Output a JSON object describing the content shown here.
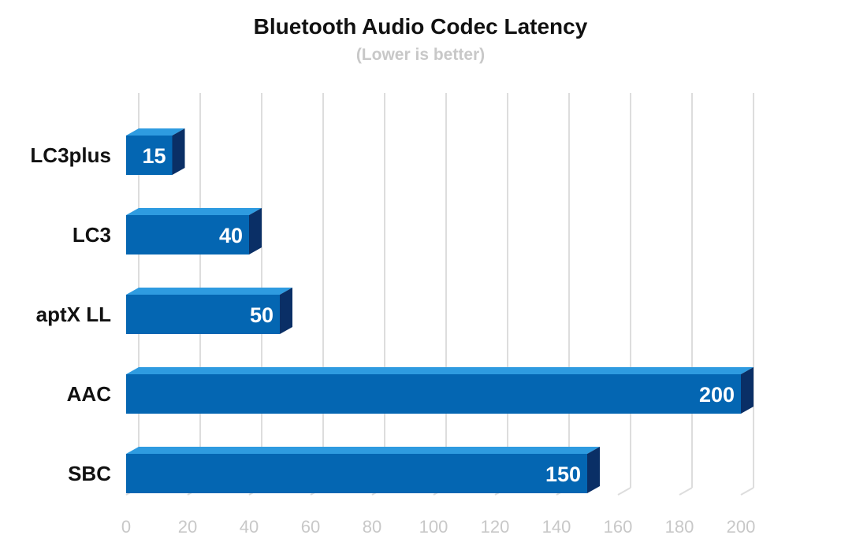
{
  "chart_data": {
    "type": "bar",
    "orientation": "horizontal",
    "title": "Bluetooth Audio Codec Latency",
    "subtitle": "(Lower is better)",
    "categories": [
      "LC3plus",
      "LC3",
      "aptX LL",
      "AAC",
      "SBC"
    ],
    "values": [
      15,
      40,
      50,
      200,
      150
    ],
    "xlim": [
      0,
      200
    ],
    "xticks": [
      0,
      20,
      40,
      60,
      80,
      100,
      120,
      140,
      160,
      180,
      200
    ],
    "grid": true,
    "colors": {
      "bar_front": "#0466b2",
      "bar_top": "#2e9be0",
      "bar_side": "#0a2f66",
      "grid": "#dddddd"
    }
  }
}
